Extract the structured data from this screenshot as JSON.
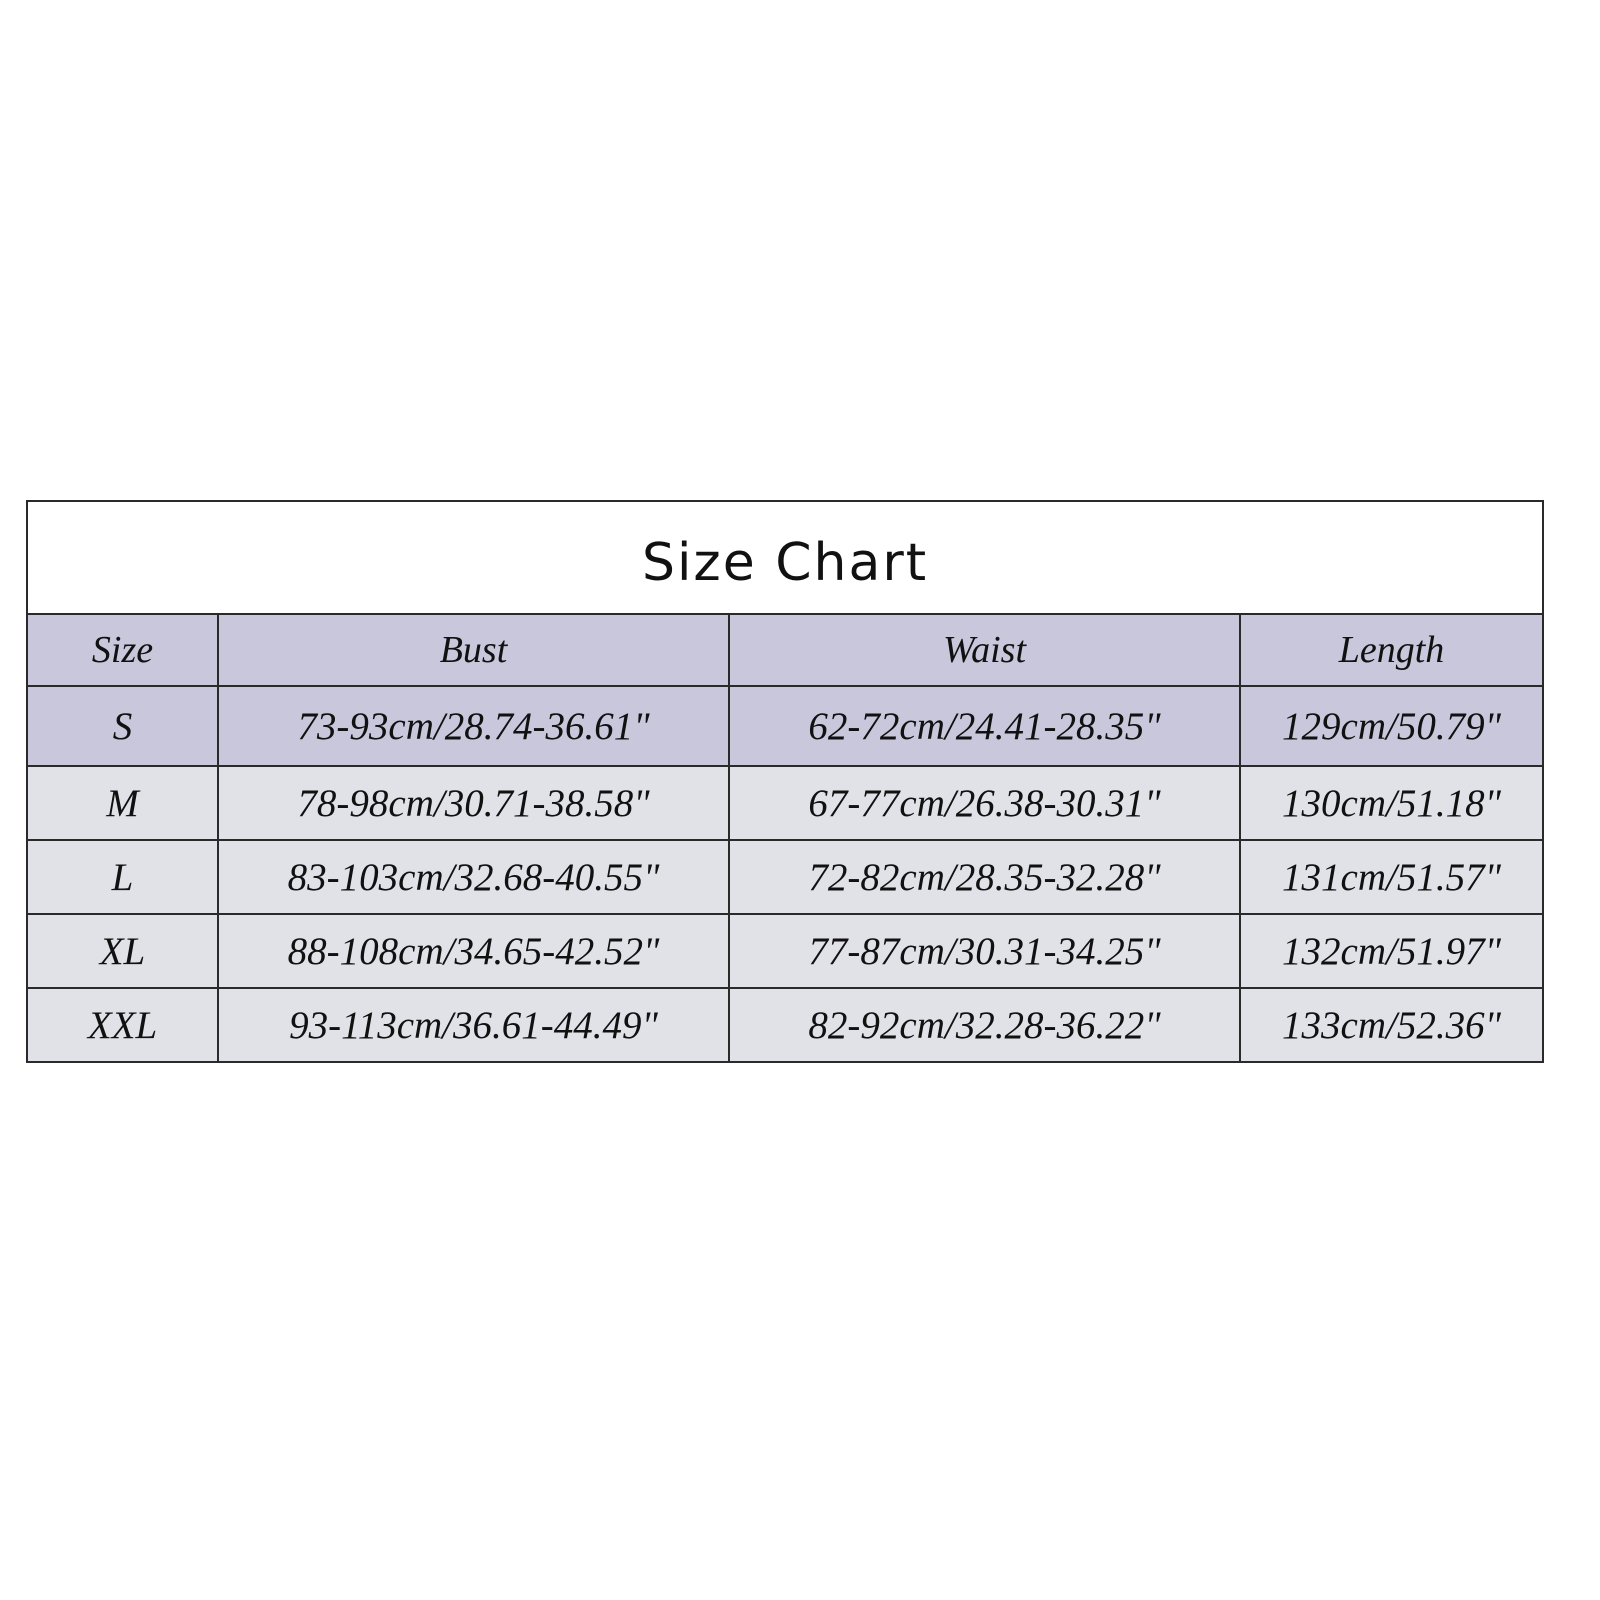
{
  "title": "Size Chart",
  "colors": {
    "header_bg": "#c9c7db",
    "row_bg": "#e1e1e8",
    "border": "#2a2a2a"
  },
  "columns": [
    "Size",
    "Bust",
    "Waist",
    "Length"
  ],
  "rows": [
    {
      "size": "S",
      "bust": "73-93cm/28.74-36.61\"",
      "waist": "62-72cm/24.41-28.35\"",
      "length": "129cm/50.79\""
    },
    {
      "size": "M",
      "bust": "78-98cm/30.71-38.58\"",
      "waist": "67-77cm/26.38-30.31\"",
      "length": "130cm/51.18\""
    },
    {
      "size": "L",
      "bust": "83-103cm/32.68-40.55\"",
      "waist": "72-82cm/28.35-32.28\"",
      "length": "131cm/51.57\""
    },
    {
      "size": "XL",
      "bust": "88-108cm/34.65-42.52\"",
      "waist": "77-87cm/30.31-34.25\"",
      "length": "132cm/51.97\""
    },
    {
      "size": "XXL",
      "bust": "93-113cm/36.61-44.49\"",
      "waist": "82-92cm/32.28-36.22\"",
      "length": "133cm/52.36\""
    }
  ]
}
